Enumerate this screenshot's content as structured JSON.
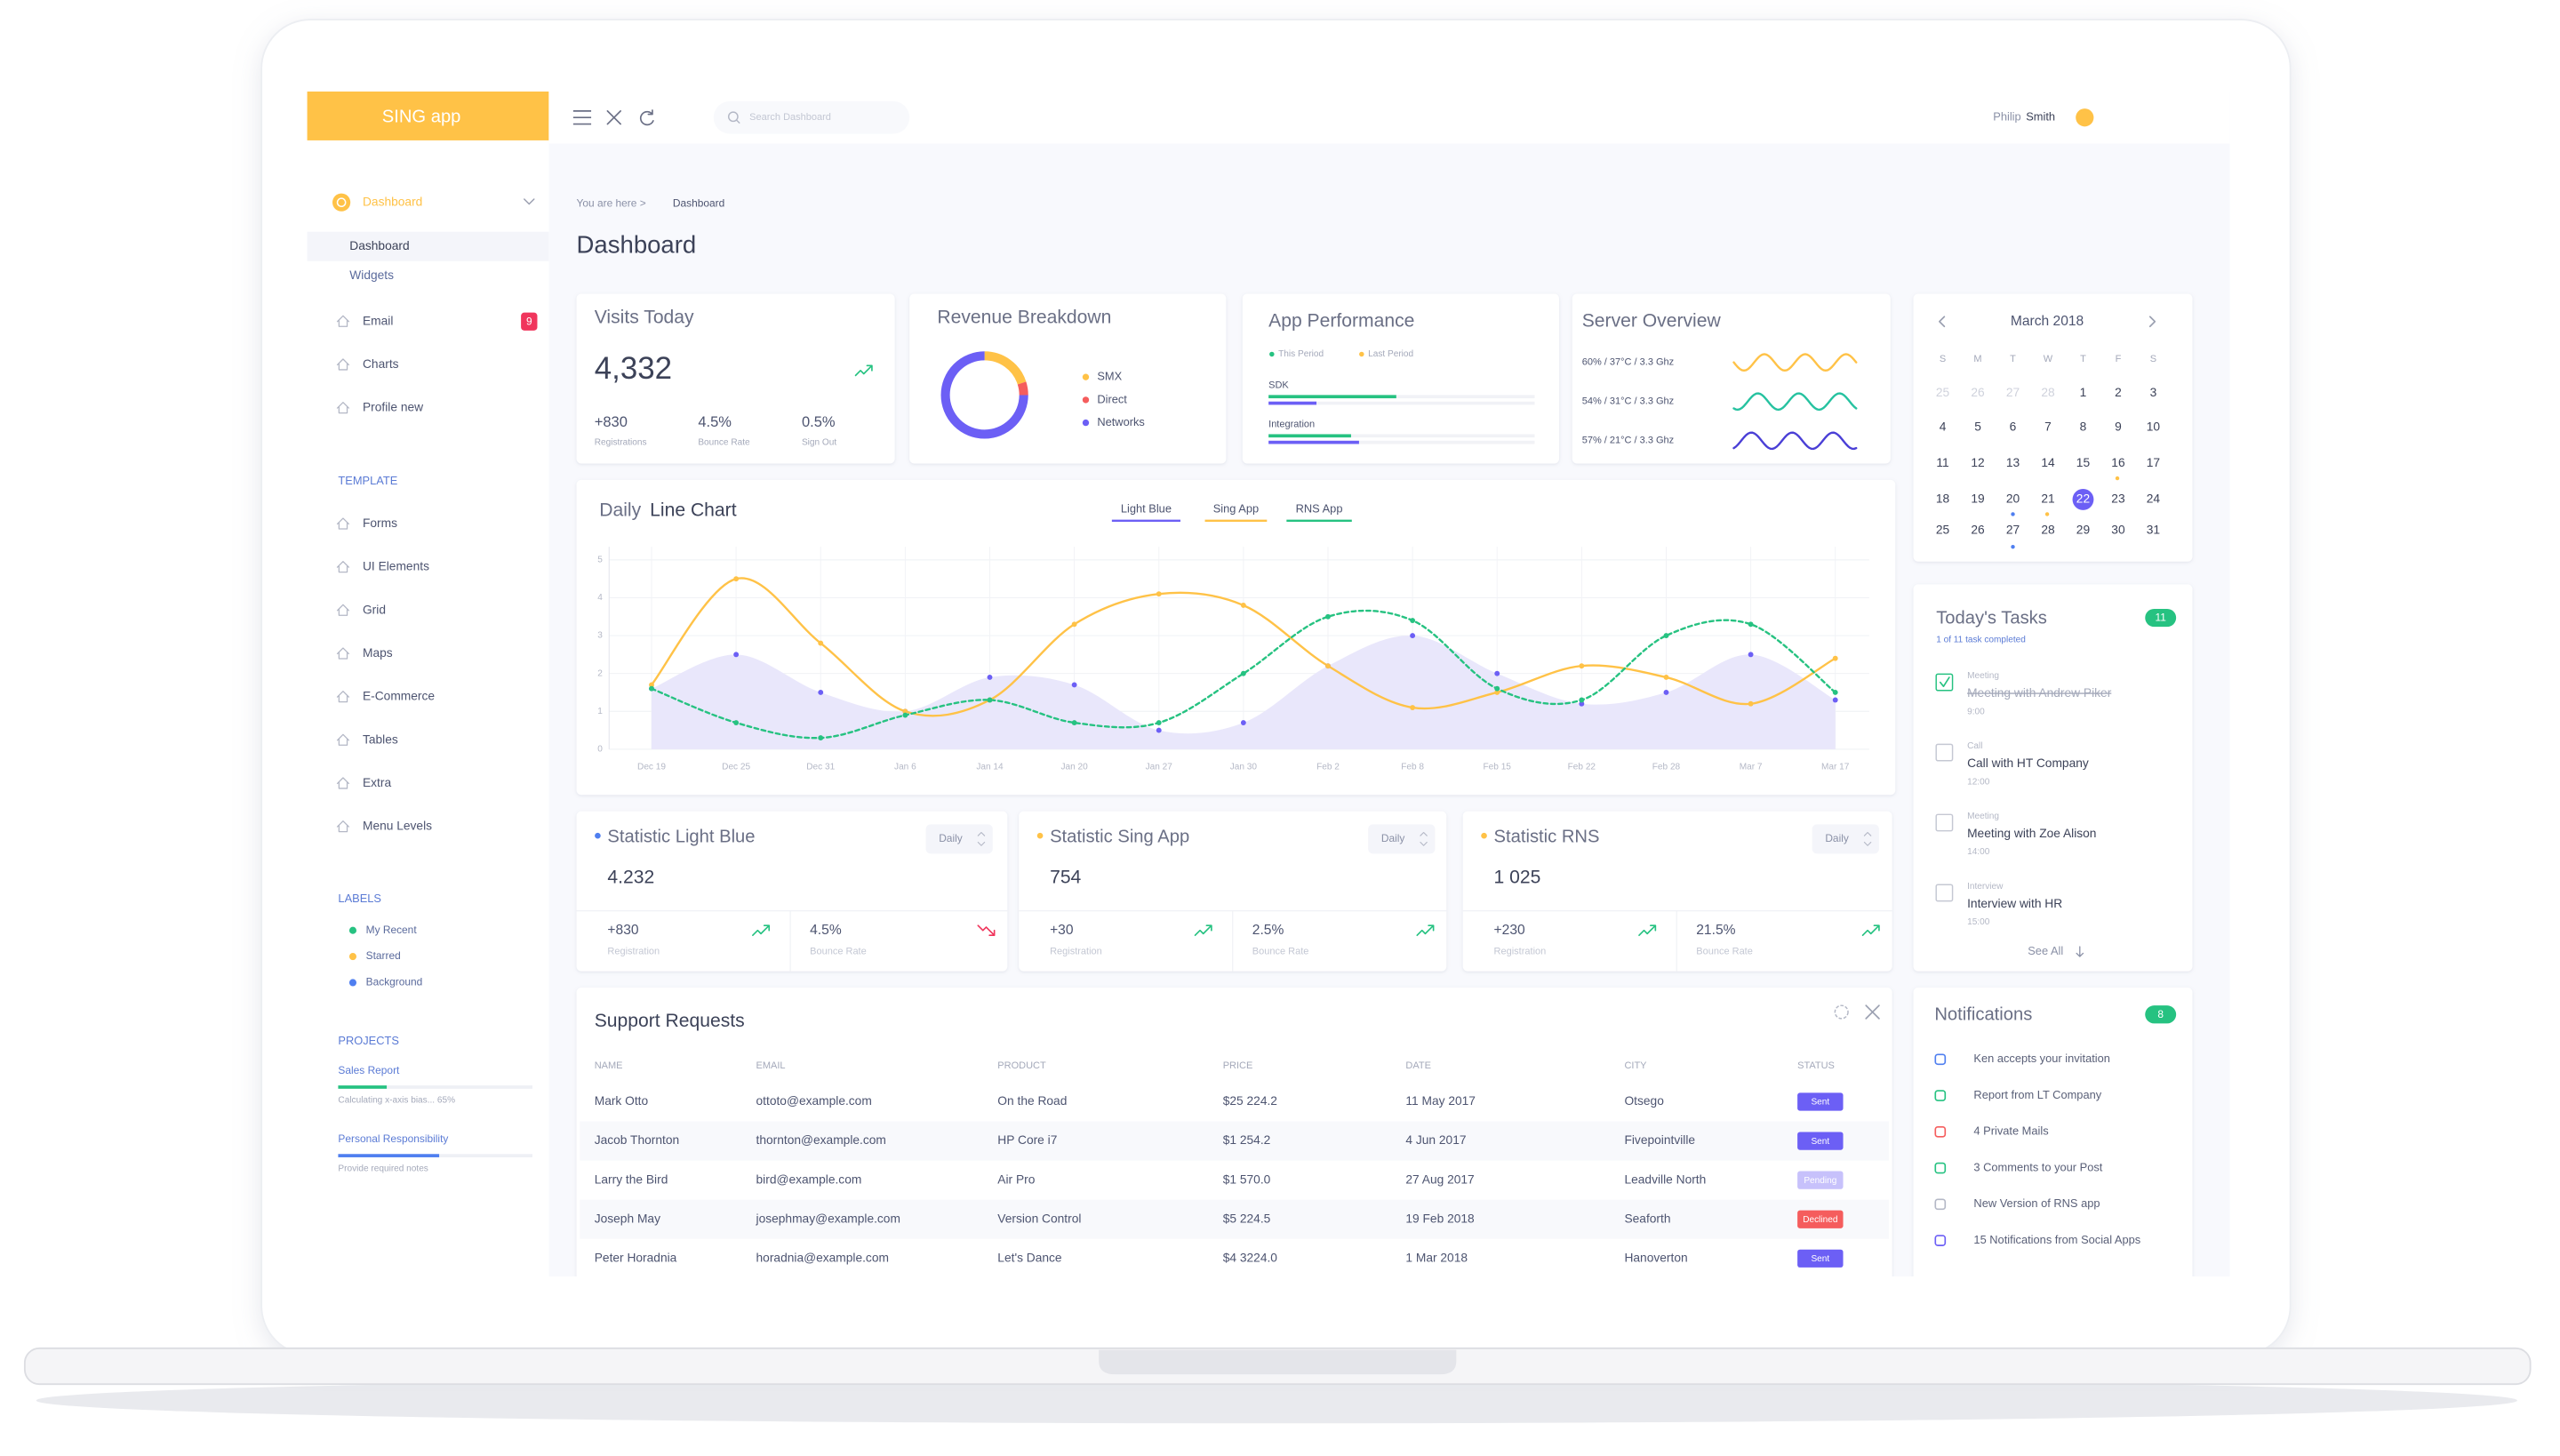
{
  "sidebar": {
    "logo": "SING app",
    "nav": [
      {
        "label": "Dashboard",
        "children": [
          "Dashboard",
          "Widgets"
        ]
      },
      {
        "label": "Email",
        "badge": "9"
      },
      {
        "label": "Charts"
      },
      {
        "label": "Profile new"
      }
    ],
    "template": {
      "title": "TEMPLATE",
      "items": [
        "Forms",
        "UI Elements",
        "Grid",
        "Maps",
        "E-Commerce",
        "Tables",
        "Extra",
        "Menu Levels"
      ]
    },
    "labels": {
      "title": "LABELS",
      "items": [
        {
          "label": "My Recent",
          "color": "#26c281"
        },
        {
          "label": "Starred",
          "color": "#ffc247"
        },
        {
          "label": "Background",
          "color": "#4f7ff0"
        }
      ]
    },
    "projects": {
      "title": "PROJECTS",
      "items": [
        {
          "name": "Sales Report",
          "note": "Calculating x-axis bias... 65%",
          "progress": 25,
          "color": "#26c281"
        },
        {
          "name": "Personal Responsibility",
          "note": "Provide required notes",
          "progress": 52,
          "color": "#4f7ff0"
        }
      ]
    }
  },
  "header": {
    "search_placeholder": "Search Dashboard",
    "user_first": "Philip",
    "user_last": "Smith"
  },
  "breadcrumb": {
    "prefix": "You are here >",
    "current": "Dashboard"
  },
  "page_title": "Dashboard",
  "visits": {
    "title": "Visits Today",
    "value": "4,332",
    "metrics": [
      {
        "value": "+830",
        "label": "Registrations"
      },
      {
        "value": "4.5%",
        "label": "Bounce Rate"
      },
      {
        "value": "0.5%",
        "label": "Sign Out"
      }
    ]
  },
  "revenue": {
    "title": "Revenue Breakdown",
    "items": [
      {
        "label": "SMX",
        "value": 20,
        "color": "#ffc247"
      },
      {
        "label": "Direct",
        "value": 5,
        "color": "#f55d5d"
      },
      {
        "label": "Networks",
        "value": 75,
        "color": "#6c5ff5"
      }
    ]
  },
  "app_performance": {
    "title": "App Performance",
    "legend": [
      {
        "label": "This Period",
        "color": "#26c281"
      },
      {
        "label": "Last Period",
        "color": "#ffc247"
      }
    ],
    "bar_colors": [
      "#26c281",
      "#6c5ff5"
    ],
    "items": [
      {
        "label": "SDK",
        "values": [
          48,
          18
        ]
      },
      {
        "label": "Integration",
        "values": [
          31,
          34
        ]
      }
    ]
  },
  "server_overview": {
    "title": "Server Overview",
    "items": [
      {
        "label": "60% / 37°C / 3.3 Ghz",
        "color": "#ffc247"
      },
      {
        "label": "54% / 31°C / 3.3 Ghz",
        "color": "#26c2a0"
      },
      {
        "label": "57% / 21°C / 3.3 Ghz",
        "color": "#4a3fd6"
      }
    ]
  },
  "calendar": {
    "month": "March 2018",
    "weekdays": [
      "S",
      "M",
      "T",
      "W",
      "T",
      "F",
      "S"
    ],
    "days": [
      [
        25,
        26,
        27,
        28,
        1,
        2,
        3
      ],
      [
        4,
        5,
        6,
        7,
        8,
        9,
        10
      ],
      [
        11,
        12,
        13,
        14,
        15,
        16,
        17
      ],
      [
        18,
        19,
        20,
        21,
        22,
        23,
        24
      ],
      [
        25,
        26,
        27,
        28,
        29,
        30,
        31
      ]
    ],
    "selected": 22
  },
  "daily_chart": {
    "type": "line",
    "title_light": "Daily",
    "title_bold": "Line Chart",
    "categories": [
      "Dec 19",
      "Dec 25",
      "Dec 31",
      "Jan 6",
      "Jan 14",
      "Jan 20",
      "Jan 27",
      "Jan 30",
      "Feb 2",
      "Feb 8",
      "Feb 15",
      "Feb 22",
      "Feb 28",
      "Mar 7",
      "Mar 17"
    ],
    "series": [
      {
        "name": "Light Blue",
        "color": "#6c5ff5",
        "area_color": "#e9e7fb",
        "values": [
          1.6,
          2.5,
          1.5,
          1.0,
          1.9,
          1.7,
          0.5,
          0.7,
          2.2,
          3.0,
          2.0,
          1.2,
          1.5,
          2.5,
          1.3
        ]
      },
      {
        "name": "Sing App",
        "color": "#ffc247",
        "values": [
          1.7,
          4.5,
          2.8,
          1.0,
          1.3,
          3.3,
          4.1,
          3.8,
          2.2,
          1.1,
          1.5,
          2.2,
          1.9,
          1.2,
          2.4
        ]
      },
      {
        "name": "RNS App",
        "color": "#26c281",
        "values": [
          1.6,
          0.7,
          0.3,
          0.9,
          1.3,
          0.7,
          0.7,
          2.0,
          3.5,
          3.4,
          1.6,
          1.3,
          3.0,
          3.3,
          1.5
        ]
      }
    ],
    "ylim": [
      0,
      5
    ],
    "yticks": [
      0,
      1,
      2,
      3,
      4,
      5
    ],
    "grid": true
  },
  "statistics": [
    {
      "title": "Statistic Light Blue",
      "value": "4.232",
      "period": "Daily",
      "color": "#4f7ff0",
      "metrics": [
        {
          "value": "+830",
          "label": "Registration",
          "trend": "up"
        },
        {
          "value": "4.5%",
          "label": "Bounce Rate",
          "trend": "down"
        }
      ]
    },
    {
      "title": "Statistic Sing App",
      "value": "754",
      "period": "Daily",
      "color": "#ffc247",
      "metrics": [
        {
          "value": "+30",
          "label": "Registration",
          "trend": "up"
        },
        {
          "value": "2.5%",
          "label": "Bounce Rate",
          "trend": "up"
        }
      ]
    },
    {
      "title": "Statistic RNS",
      "value": "1 025",
      "period": "Daily",
      "color": "#ffc247",
      "metrics": [
        {
          "value": "+230",
          "label": "Registration",
          "trend": "up"
        },
        {
          "value": "21.5%",
          "label": "Bounce Rate",
          "trend": "up"
        }
      ]
    }
  ],
  "support": {
    "title": "Support Requests",
    "columns": [
      "NAME",
      "EMAIL",
      "PRODUCT",
      "PRICE",
      "DATE",
      "CITY",
      "STATUS"
    ],
    "rows": [
      [
        "Mark Otto",
        "ottoto@example.com",
        "On the Road",
        "$25 224.2",
        "11 May 2017",
        "Otsego",
        "Sent"
      ],
      [
        "Jacob Thornton",
        "thornton@example.com",
        "HP Core i7",
        "$1 254.2",
        "4 Jun 2017",
        "Fivepointville",
        "Sent"
      ],
      [
        "Larry the Bird",
        "bird@example.com",
        "Air Pro",
        "$1 570.0",
        "27 Aug 2017",
        "Leadville North",
        "Pending"
      ],
      [
        "Joseph May",
        "josephmay@example.com",
        "Version Control",
        "$5 224.5",
        "19 Feb 2018",
        "Seaforth",
        "Declined"
      ],
      [
        "Peter Horadnia",
        "horadnia@example.com",
        "Let's Dance",
        "$4 3224.0",
        "1 Mar 2018",
        "Hanoverton",
        "Sent"
      ]
    ],
    "status_colors": [
      "#6c5ff5",
      "#6c5ff5",
      "#c7c1fb",
      "#f55d5d",
      "#6c5ff5"
    ]
  },
  "tasks": {
    "title": "Today's Tasks",
    "badge": "11",
    "summary": "1 of 11 task completed",
    "items": [
      {
        "category": "Meeting",
        "title": "Meeting with Andrew Piker",
        "time": "9:00",
        "done": true
      },
      {
        "category": "Call",
        "title": "Call with HT Company",
        "time": "12:00",
        "done": false
      },
      {
        "category": "Meeting",
        "title": "Meeting with Zoe Alison",
        "time": "14:00",
        "done": false
      },
      {
        "category": "Interview",
        "title": "Interview with HR",
        "time": "15:00",
        "done": false
      }
    ],
    "see_all": "See All"
  },
  "notifications": {
    "title": "Notifications",
    "badge": "8",
    "items": [
      {
        "text": "Ken accepts your invitation",
        "color": "#4f7ff0"
      },
      {
        "text": "Report from LT Company",
        "color": "#26c281"
      },
      {
        "text": "4 Private Mails",
        "color": "#f55d5d"
      },
      {
        "text": "3 Comments to your Post",
        "color": "#26c281"
      },
      {
        "text": "New Version of RNS app",
        "color": "#b4b8c6"
      },
      {
        "text": "15 Notifications from Social Apps",
        "color": "#6c5ff5"
      }
    ]
  }
}
